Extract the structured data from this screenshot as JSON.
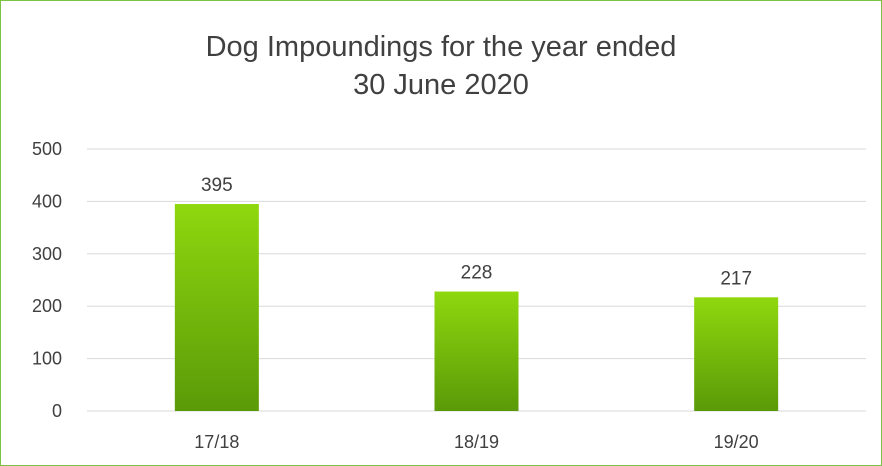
{
  "chart_data": {
    "type": "bar",
    "title_line1": "Dog Impoundings for the year ended",
    "title_line2": "30 June 2020",
    "categories": [
      "17/18",
      "18/19",
      "19/20"
    ],
    "values": [
      395,
      228,
      217
    ],
    "data_labels": [
      "395",
      "228",
      "217"
    ],
    "y_ticks": [
      "0",
      "100",
      "200",
      "300",
      "400",
      "500"
    ],
    "ylim": [
      0,
      500
    ],
    "grid": true,
    "legend": "none",
    "colors": {
      "bar_top": "#8fd80e",
      "bar_bottom": "#5a9a08",
      "gridline": "#d9d9d9",
      "frame": "#7cc242",
      "text": "#404040"
    }
  }
}
